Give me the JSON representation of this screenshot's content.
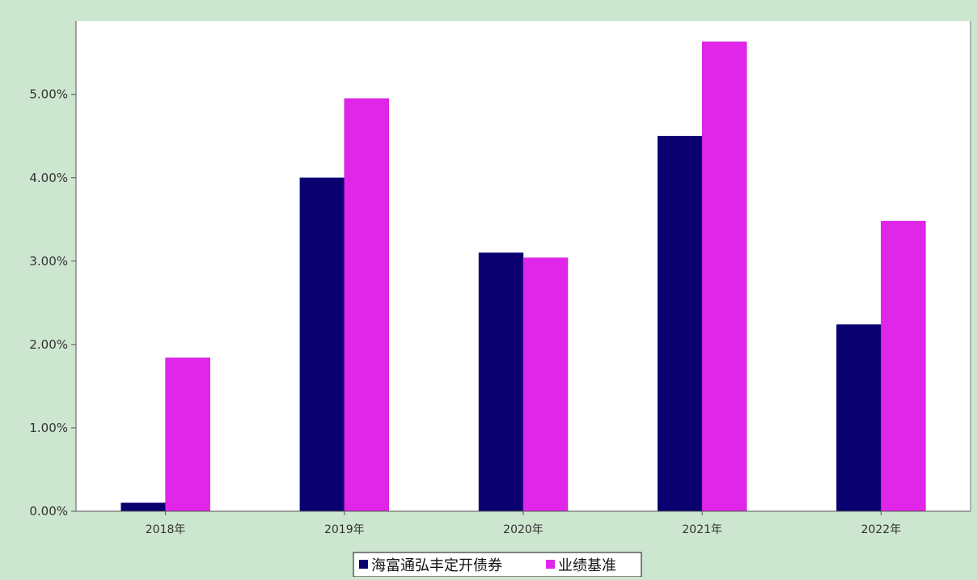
{
  "colors": {
    "page_background": "#cde6d0",
    "plot_background": "#ffffff",
    "axis": "#555555",
    "series": [
      "#0a0070",
      "#e026e8"
    ]
  },
  "chart_data": {
    "type": "bar",
    "title": "",
    "xlabel": "",
    "ylabel": "",
    "categories": [
      "2018年",
      "2019年",
      "2020年",
      "2021年",
      "2022年"
    ],
    "series": [
      {
        "name": "海富通弘丰定开债券",
        "color": "#0a0070",
        "values": [
          0.1,
          4.0,
          3.1,
          4.5,
          2.24
        ]
      },
      {
        "name": "业绩基准",
        "color": "#e026e8",
        "values": [
          1.84,
          4.95,
          3.04,
          5.63,
          3.48
        ]
      }
    ],
    "ylim": [
      0,
      5.88
    ],
    "yticks": [
      0,
      1,
      2,
      3,
      4,
      5
    ],
    "ytick_labels": [
      "0.00%",
      "1.00%",
      "2.00%",
      "3.00%",
      "4.00%",
      "5.00%"
    ],
    "grid": false,
    "legend": {
      "placement": "bottom-center"
    }
  }
}
